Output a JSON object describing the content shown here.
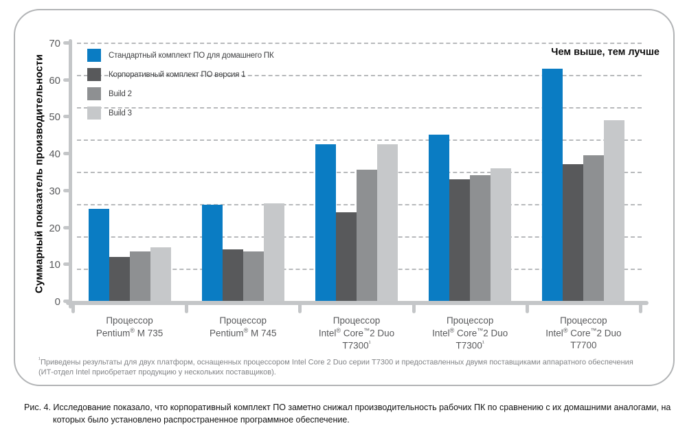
{
  "chart_data": {
    "type": "bar",
    "title": "",
    "ylabel": "Суммарный показатель производительности",
    "xlabel": "",
    "ylim": [
      0,
      70
    ],
    "yticks": [
      0,
      10,
      20,
      30,
      40,
      50,
      60,
      70
    ],
    "grid": "dashed-horizontal",
    "grid_divisions": 8,
    "legend_position": "top-left",
    "annotation": "Чем выше, тем лучше",
    "categories": [
      [
        "Процессор",
        "Pentium® M 735"
      ],
      [
        "Процессор",
        "Pentium® M 745"
      ],
      [
        "Процессор",
        "Intel® Core™2 Duo",
        "T7300¹"
      ],
      [
        "Процессор",
        "Intel® Core™2 Duo",
        "T7300¹"
      ],
      [
        "Процессор",
        "Intel® Core™2 Duo",
        "T7700"
      ]
    ],
    "series": [
      {
        "name": "Стандартный комплект ПО для домашнего ПК",
        "color": "#0a7cc3",
        "values": [
          25,
          26,
          42.5,
          45,
          63
        ]
      },
      {
        "name": "Корпоративный комплект ПО версия 1",
        "color": "#58595b",
        "values": [
          12,
          14,
          24,
          33,
          37
        ]
      },
      {
        "name": "Build 2",
        "color": "#8e9092",
        "values": [
          13.5,
          13.5,
          35.5,
          34,
          39.5
        ]
      },
      {
        "name": "Build 3",
        "color": "#c6c8ca",
        "values": [
          14.5,
          26.5,
          42.5,
          36,
          49
        ]
      }
    ]
  },
  "colors": {
    "axis": "#c4c6c8",
    "gridline": "#b7b9bb",
    "tick_label": "#58595b",
    "footnote_text": "#808285",
    "border": "#b1b3b5"
  },
  "footnote": "¹Приведены результаты для двух платформ, оснащенных процессором Intel Core 2 Duo серии T7300 и предоставленных двумя поставщиками аппаратного обеспечения (ИТ-отдел Intel приобретает продукцию у нескольких поставщиков).",
  "caption": "Рис. 4. Исследование показало, что корпоративный комплект ПО заметно снижал производительность рабочих ПК по сравнению с их домашними аналогами, на которых было установлено распространенное программное обеспечение."
}
